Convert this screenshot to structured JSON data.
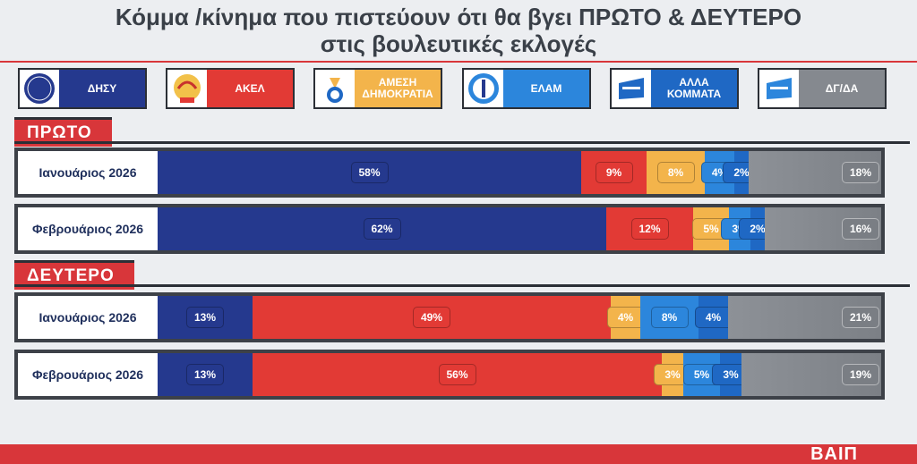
{
  "title_line1": "Κόμμα /κίνημα που πιστεύουν ότι θα βγει ΠΡΩΤΟ & ΔΕΥΤΕΡΟ",
  "title_line2": "στις βουλευτικές εκλογές",
  "colors": {
    "disy": "#25398e",
    "akel": "#e23a35",
    "alma": "#f3b44b",
    "elam": "#2c86dc",
    "alla": "#1f68c4",
    "dg": "#85898f",
    "accent": "#d8363a"
  },
  "parties": [
    {
      "name": "ΔΗΣΥ",
      "color_key": "disy",
      "icon": "disy-logo-icon"
    },
    {
      "name": "ΑΚΕΛ",
      "color_key": "akel",
      "icon": "akel-logo-icon"
    },
    {
      "name": "ΑΜΕΣΗ ΔΗΜΟΚΡΑΤΙΑ",
      "color_key": "alma",
      "icon": "amesi-logo-icon"
    },
    {
      "name": "ΕΛΑΜ",
      "color_key": "elam",
      "icon": "elam-logo-icon"
    },
    {
      "name": "ΑΛΛΑ ΚΟΜΜΑΤΑ",
      "color_key": "alla",
      "icon": "alla-logo-icon"
    },
    {
      "name": "ΔΓ/ΔΑ",
      "color_key": "dg",
      "icon": "dgda-logo-icon"
    }
  ],
  "chart_data": [
    {
      "type": "bar",
      "stacked": true,
      "orientation": "horizontal",
      "section": "ΠΡΩΤΟ",
      "categories": [
        "Ιανουάριος 2026",
        "Φεβρουάριος 2026"
      ],
      "series": [
        {
          "name": "ΔΗΣΥ",
          "values": [
            58,
            62
          ],
          "labels": [
            "58%",
            "62%"
          ]
        },
        {
          "name": "ΑΚΕΛ",
          "values": [
            9,
            12
          ],
          "labels": [
            "9%",
            "12%"
          ]
        },
        {
          "name": "ΑΜΕΣΗ ΔΗΜΟΚΡΑΤΙΑ",
          "values": [
            8,
            5
          ],
          "labels": [
            "8%",
            "5%"
          ]
        },
        {
          "name": "ΕΛΑΜ",
          "values": [
            4,
            3
          ],
          "labels": [
            "4%",
            "3%"
          ]
        },
        {
          "name": "ΑΛΛΑ ΚΟΜΜΑΤΑ",
          "values": [
            2,
            2
          ],
          "labels": [
            "2%",
            "2%"
          ]
        },
        {
          "name": "ΔΓ/ΔΑ",
          "values": [
            18,
            16
          ],
          "labels": [
            "18%",
            "16%"
          ]
        }
      ]
    },
    {
      "type": "bar",
      "stacked": true,
      "orientation": "horizontal",
      "section": "ΔΕΥΤΕΡΟ",
      "categories": [
        "Ιανουάριος 2026",
        "Φεβρουάριος 2026"
      ],
      "series": [
        {
          "name": "ΔΗΣΥ",
          "values": [
            13,
            13
          ],
          "labels": [
            "13%",
            "13%"
          ]
        },
        {
          "name": "ΑΚΕΛ",
          "values": [
            49,
            56
          ],
          "labels": [
            "49%",
            "56%"
          ]
        },
        {
          "name": "ΑΜΕΣΗ ΔΗΜΟΚΡΑΤΙΑ",
          "values": [
            4,
            3
          ],
          "labels": [
            "4%",
            "3%"
          ]
        },
        {
          "name": "ΕΛΑΜ",
          "values": [
            8,
            5
          ],
          "labels": [
            "8%",
            "5%"
          ]
        },
        {
          "name": "ΑΛΛΑ ΚΟΜΜΑΤΑ",
          "values": [
            4,
            3
          ],
          "labels": [
            "4%",
            "3%"
          ]
        },
        {
          "name": "ΔΓ/ΔΑ",
          "values": [
            21,
            19
          ],
          "labels": [
            "21%",
            "19%"
          ]
        }
      ]
    }
  ],
  "brand": "ΒΑΙΠ"
}
